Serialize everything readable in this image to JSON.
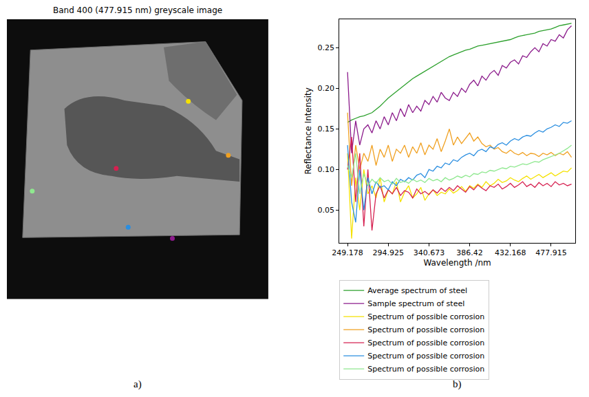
{
  "chart_data": [
    {
      "type": "image",
      "title": "Band 400 (477.915 nm) greyscale image",
      "caption": "a)",
      "tick_labels": false,
      "points": [
        {
          "color": "#f5e100",
          "x": 69.4,
          "y": 29.3
        },
        {
          "color": "#f0a020",
          "x": 84.7,
          "y": 48.6
        },
        {
          "color": "#d62050",
          "x": 41.8,
          "y": 53.3
        },
        {
          "color": "#8fe88f",
          "x": 9.7,
          "y": 61.4
        },
        {
          "color": "#2a8ee0",
          "x": 46.4,
          "y": 74.3
        },
        {
          "color": "#8b1a8b",
          "x": 63.3,
          "y": 78.3
        }
      ]
    },
    {
      "type": "line",
      "caption": "b)",
      "x_label": "Wavelength /nm",
      "y_label": "Reflectance Intensity",
      "grid": false,
      "legend": "below",
      "xlim": [
        240,
        505
      ],
      "xticks": [
        249.178,
        294.925,
        340.673,
        386.42,
        432.168,
        477.915
      ],
      "ylim": [
        0.01,
        0.285
      ],
      "yticks": [
        0.05,
        {
          "value": 0.1,
          "label": "0.10"
        },
        0.15,
        {
          "value": 0.2,
          "label": "0.20"
        },
        0.25
      ],
      "x": [
        249.178,
        253.753,
        258.327,
        262.902,
        267.477,
        272.051,
        276.626,
        281.201,
        285.776,
        290.35,
        294.925,
        299.5,
        304.074,
        308.649,
        313.224,
        317.799,
        322.373,
        326.948,
        331.523,
        336.097,
        340.672,
        345.247,
        349.822,
        354.396,
        358.971,
        363.546,
        368.121,
        372.695,
        377.27,
        381.845,
        386.42,
        390.994,
        395.569,
        400.144,
        404.718,
        409.293,
        413.868,
        418.443,
        423.017,
        427.592,
        432.167,
        436.741,
        441.316,
        445.891,
        450.466,
        455.04,
        459.615,
        464.19,
        468.764,
        473.339,
        477.914,
        482.489,
        487.063,
        491.638,
        496.213,
        500.787
      ],
      "series": [
        {
          "name": "Average spectrum of steel",
          "color": "#2ca02c",
          "values": [
            0.158,
            0.161,
            0.163,
            0.165,
            0.166,
            0.168,
            0.17,
            0.174,
            0.178,
            0.183,
            0.188,
            0.192,
            0.196,
            0.2,
            0.204,
            0.208,
            0.212,
            0.215,
            0.218,
            0.221,
            0.224,
            0.227,
            0.23,
            0.233,
            0.236,
            0.239,
            0.241,
            0.243,
            0.245,
            0.247,
            0.248,
            0.25,
            0.252,
            0.253,
            0.254,
            0.255,
            0.256,
            0.257,
            0.258,
            0.259,
            0.26,
            0.262,
            0.264,
            0.265,
            0.266,
            0.267,
            0.268,
            0.27,
            0.271,
            0.272,
            0.273,
            0.275,
            0.277,
            0.278,
            0.279,
            0.28
          ]
        },
        {
          "name": "Sample spectrum of steel",
          "color": "#8b1a8b",
          "values": [
            0.22,
            0.12,
            0.16,
            0.13,
            0.15,
            0.155,
            0.145,
            0.16,
            0.15,
            0.165,
            0.155,
            0.17,
            0.16,
            0.175,
            0.165,
            0.18,
            0.17,
            0.178,
            0.172,
            0.185,
            0.18,
            0.19,
            0.183,
            0.195,
            0.188,
            0.185,
            0.195,
            0.19,
            0.2,
            0.195,
            0.205,
            0.21,
            0.203,
            0.215,
            0.21,
            0.218,
            0.222,
            0.216,
            0.228,
            0.225,
            0.232,
            0.235,
            0.23,
            0.24,
            0.238,
            0.245,
            0.25,
            0.245,
            0.255,
            0.252,
            0.26,
            0.258,
            0.266,
            0.262,
            0.272,
            0.277
          ]
        },
        {
          "name": "Spectrum of possible corrosion",
          "color": "#f5e100",
          "values": [
            0.12,
            0.015,
            0.09,
            0.05,
            0.1,
            0.07,
            0.08,
            0.065,
            0.09,
            0.06,
            0.075,
            0.07,
            0.085,
            0.06,
            0.072,
            0.08,
            0.065,
            0.07,
            0.078,
            0.062,
            0.07,
            0.075,
            0.068,
            0.072,
            0.07,
            0.076,
            0.071,
            0.074,
            0.079,
            0.073,
            0.08,
            0.077,
            0.082,
            0.078,
            0.085,
            0.08,
            0.083,
            0.088,
            0.084,
            0.086,
            0.09,
            0.087,
            0.085,
            0.089,
            0.092,
            0.088,
            0.091,
            0.094,
            0.09,
            0.093,
            0.096,
            0.092,
            0.095,
            0.098,
            0.097,
            0.102
          ]
        },
        {
          "name": "Spectrum of possible corrosion",
          "color": "#f0a020",
          "values": [
            0.17,
            0.08,
            0.13,
            0.1,
            0.12,
            0.11,
            0.13,
            0.105,
            0.125,
            0.115,
            0.13,
            0.11,
            0.125,
            0.12,
            0.13,
            0.115,
            0.128,
            0.12,
            0.133,
            0.118,
            0.13,
            0.125,
            0.138,
            0.122,
            0.135,
            0.15,
            0.13,
            0.14,
            0.132,
            0.138,
            0.145,
            0.135,
            0.14,
            0.132,
            0.128,
            0.13,
            0.125,
            0.127,
            0.122,
            0.12,
            0.124,
            0.12,
            0.118,
            0.121,
            0.117,
            0.12,
            0.119,
            0.116,
            0.12,
            0.118,
            0.121,
            0.117,
            0.12,
            0.118,
            0.122,
            0.115
          ]
        },
        {
          "name": "Spectrum of possible corrosion",
          "color": "#d62050",
          "values": [
            0.1,
            0.14,
            0.06,
            0.12,
            0.03,
            0.1,
            0.025,
            0.07,
            0.08,
            0.065,
            0.075,
            0.07,
            0.078,
            0.068,
            0.074,
            0.072,
            0.065,
            0.076,
            0.07,
            0.073,
            0.069,
            0.075,
            0.071,
            0.077,
            0.073,
            0.078,
            0.074,
            0.08,
            0.076,
            0.072,
            0.079,
            0.075,
            0.081,
            0.077,
            0.074,
            0.08,
            0.078,
            0.082,
            0.076,
            0.079,
            0.083,
            0.078,
            0.081,
            0.085,
            0.079,
            0.082,
            0.078,
            0.084,
            0.08,
            0.083,
            0.079,
            0.085,
            0.081,
            0.083,
            0.08,
            0.082
          ]
        },
        {
          "name": "Spectrum of possible corrosion",
          "color": "#2a8ee0",
          "values": [
            0.13,
            0.06,
            0.035,
            0.1,
            0.05,
            0.09,
            0.07,
            0.085,
            0.078,
            0.08,
            0.075,
            0.085,
            0.08,
            0.088,
            0.085,
            0.09,
            0.087,
            0.093,
            0.095,
            0.09,
            0.1,
            0.098,
            0.104,
            0.102,
            0.108,
            0.106,
            0.112,
            0.11,
            0.115,
            0.118,
            0.12,
            0.117,
            0.123,
            0.125,
            0.122,
            0.128,
            0.126,
            0.131,
            0.133,
            0.13,
            0.135,
            0.138,
            0.136,
            0.14,
            0.142,
            0.141,
            0.145,
            0.148,
            0.146,
            0.15,
            0.152,
            0.155,
            0.153,
            0.158,
            0.157,
            0.16
          ]
        },
        {
          "name": "Spectrum of possible corrosion",
          "color": "#8fe88f",
          "values": [
            0.105,
            0.09,
            0.12,
            0.07,
            0.095,
            0.08,
            0.088,
            0.083,
            0.09,
            0.085,
            0.087,
            0.082,
            0.089,
            0.084,
            0.086,
            0.083,
            0.088,
            0.085,
            0.087,
            0.084,
            0.089,
            0.086,
            0.088,
            0.085,
            0.09,
            0.087,
            0.089,
            0.092,
            0.09,
            0.093,
            0.091,
            0.095,
            0.094,
            0.097,
            0.096,
            0.099,
            0.098,
            0.1,
            0.102,
            0.101,
            0.104,
            0.103,
            0.105,
            0.107,
            0.106,
            0.108,
            0.11,
            0.109,
            0.112,
            0.114,
            0.116,
            0.118,
            0.12,
            0.123,
            0.126,
            0.13
          ]
        }
      ]
    }
  ]
}
